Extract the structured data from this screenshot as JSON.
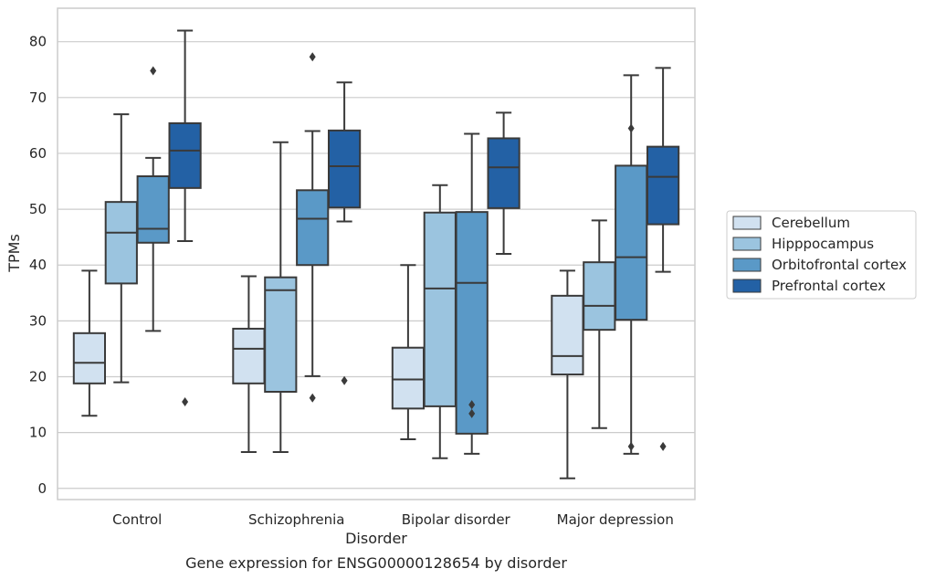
{
  "colors": {
    "Cerebellum": "#d1e1f0",
    "Hipppocampus": "#9bc4df",
    "Orbitofrontal cortex": "#5a99c7",
    "Prefrontal cortex": "#2361a5",
    "line": "#3a3a3a",
    "grid": "#cccccc"
  },
  "chart_data": {
    "type": "box",
    "title": "Gene expression for ENSG00000128654 by disorder",
    "xlabel": "Disorder",
    "ylabel": "TPMs",
    "ylim": [
      -2,
      86
    ],
    "yticks": [
      0,
      10,
      20,
      30,
      40,
      50,
      60,
      70,
      80
    ],
    "grid": true,
    "legend_position": "right",
    "categories": [
      "Control",
      "Schizophrenia",
      "Bipolar disorder",
      "Major depression"
    ],
    "series": [
      {
        "name": "Cerebellum",
        "boxes": [
          {
            "whislo": 13.0,
            "q1": 18.8,
            "med": 22.5,
            "q3": 27.8,
            "whishi": 39.0,
            "fliers": []
          },
          {
            "whislo": 6.5,
            "q1": 18.8,
            "med": 25.0,
            "q3": 28.6,
            "whishi": 38.0,
            "fliers": []
          },
          {
            "whislo": 8.8,
            "q1": 14.3,
            "med": 19.5,
            "q3": 25.2,
            "whishi": 40.0,
            "fliers": []
          },
          {
            "whislo": 1.8,
            "q1": 20.4,
            "med": 23.7,
            "q3": 34.5,
            "whishi": 39.0,
            "fliers": []
          }
        ]
      },
      {
        "name": "Hipppocampus",
        "boxes": [
          {
            "whislo": 19.0,
            "q1": 36.7,
            "med": 45.8,
            "q3": 51.3,
            "whishi": 67.0,
            "fliers": []
          },
          {
            "whislo": 6.5,
            "q1": 17.3,
            "med": 35.5,
            "q3": 37.8,
            "whishi": 62.0,
            "fliers": []
          },
          {
            "whislo": 5.4,
            "q1": 14.7,
            "med": 35.8,
            "q3": 49.4,
            "whishi": 54.3,
            "fliers": []
          },
          {
            "whislo": 10.8,
            "q1": 28.4,
            "med": 32.7,
            "q3": 40.5,
            "whishi": 48.0,
            "fliers": []
          }
        ]
      },
      {
        "name": "Orbitofrontal cortex",
        "boxes": [
          {
            "whislo": 28.2,
            "q1": 44.0,
            "med": 46.5,
            "q3": 55.9,
            "whishi": 59.2,
            "fliers": [
              74.8
            ]
          },
          {
            "whislo": 20.1,
            "q1": 40.0,
            "med": 48.3,
            "q3": 53.4,
            "whishi": 64.0,
            "fliers": [
              77.3,
              16.2
            ]
          },
          {
            "whislo": 6.2,
            "q1": 9.8,
            "med": 36.8,
            "q3": 49.5,
            "whishi": 63.5,
            "fliers": [
              15.0,
              13.4
            ]
          },
          {
            "whislo": 6.2,
            "q1": 30.2,
            "med": 41.4,
            "q3": 57.8,
            "whishi": 74.0,
            "fliers": [
              64.5,
              7.5
            ]
          }
        ]
      },
      {
        "name": "Prefrontal cortex",
        "boxes": [
          {
            "whislo": 44.3,
            "q1": 53.8,
            "med": 60.5,
            "q3": 65.4,
            "whishi": 82.0,
            "fliers": [
              15.5
            ]
          },
          {
            "whislo": 47.8,
            "q1": 50.3,
            "med": 57.7,
            "q3": 64.1,
            "whishi": 72.7,
            "fliers": [
              19.3
            ]
          },
          {
            "whislo": 42.0,
            "q1": 50.2,
            "med": 57.5,
            "q3": 62.7,
            "whishi": 67.3,
            "fliers": []
          },
          {
            "whislo": 38.8,
            "q1": 47.3,
            "med": 55.8,
            "q3": 61.2,
            "whishi": 75.3,
            "fliers": [
              7.5
            ]
          }
        ]
      }
    ]
  }
}
